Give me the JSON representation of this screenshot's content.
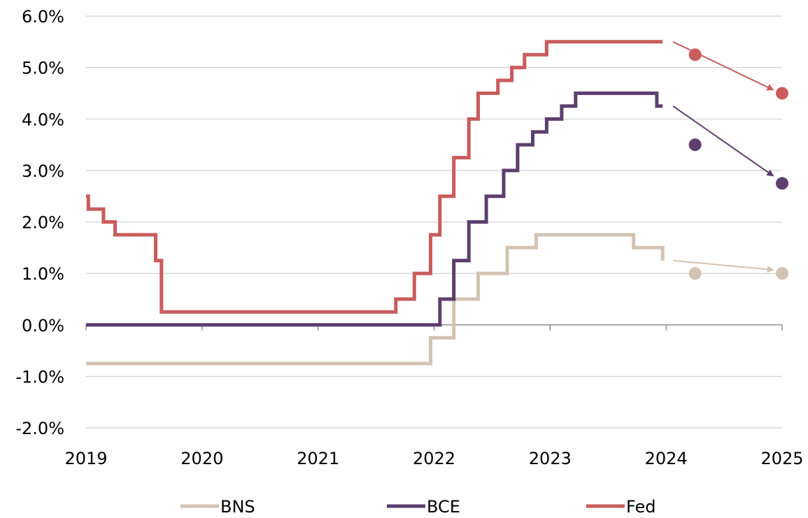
{
  "chart_data": {
    "type": "line",
    "step": true,
    "title": "",
    "xlabel": "",
    "ylabel": "",
    "xlim": [
      2019,
      2025
    ],
    "ylim": [
      -2.0,
      6.0
    ],
    "x_ticks": [
      "2019",
      "2020",
      "2021",
      "2022",
      "2023",
      "2024",
      "2025"
    ],
    "y_ticks": [
      "6.0%",
      "5.0%",
      "4.0%",
      "3.0%",
      "2.0%",
      "1.0%",
      "0.0%",
      "-1.0%",
      "-2.0%"
    ],
    "grid": "horizontal",
    "legend_position": "bottom",
    "series": [
      {
        "name": "BNS",
        "color": "#d3c3b2",
        "points": [
          [
            2019.0,
            -0.75
          ],
          [
            2021.97,
            -0.75
          ],
          [
            2021.97,
            -0.25
          ],
          [
            2022.17,
            -0.25
          ],
          [
            2022.17,
            0.5
          ],
          [
            2022.38,
            0.5
          ],
          [
            2022.38,
            1.0
          ],
          [
            2022.63,
            1.0
          ],
          [
            2022.63,
            1.5
          ],
          [
            2022.88,
            1.5
          ],
          [
            2022.88,
            1.75
          ],
          [
            2023.72,
            1.75
          ],
          [
            2023.72,
            1.5
          ],
          [
            2023.97,
            1.5
          ],
          [
            2023.97,
            1.25
          ]
        ],
        "forecast": [
          {
            "x": 2024.25,
            "y": 1.0
          },
          {
            "x": 2025.0,
            "y": 1.0
          }
        ],
        "arrow": {
          "from": [
            2024.06,
            1.25
          ],
          "to": [
            2024.92,
            1.07
          ]
        }
      },
      {
        "name": "BCE",
        "color": "#5c3f6e",
        "points": [
          [
            2019.0,
            0.0
          ],
          [
            2022.05,
            0.0
          ],
          [
            2022.05,
            0.5
          ],
          [
            2022.17,
            0.5
          ],
          [
            2022.17,
            1.25
          ],
          [
            2022.3,
            1.25
          ],
          [
            2022.3,
            2.0
          ],
          [
            2022.45,
            2.0
          ],
          [
            2022.45,
            2.5
          ],
          [
            2022.6,
            2.5
          ],
          [
            2022.6,
            3.0
          ],
          [
            2022.72,
            3.0
          ],
          [
            2022.72,
            3.5
          ],
          [
            2022.85,
            3.5
          ],
          [
            2022.85,
            3.75
          ],
          [
            2022.97,
            3.75
          ],
          [
            2022.97,
            4.0
          ],
          [
            2023.1,
            4.0
          ],
          [
            2023.1,
            4.25
          ],
          [
            2023.22,
            4.25
          ],
          [
            2023.22,
            4.5
          ],
          [
            2023.92,
            4.5
          ],
          [
            2023.92,
            4.25
          ],
          [
            2023.97,
            4.25
          ]
        ],
        "forecast": [
          {
            "x": 2024.25,
            "y": 3.5
          },
          {
            "x": 2025.0,
            "y": 2.75
          }
        ],
        "arrow": {
          "from": [
            2024.06,
            4.25
          ],
          "to": [
            2024.92,
            2.9
          ]
        }
      },
      {
        "name": "Fed",
        "color": "#c95c5c",
        "points": [
          [
            2019.0,
            2.5
          ],
          [
            2019.02,
            2.5
          ],
          [
            2019.02,
            2.25
          ],
          [
            2019.15,
            2.25
          ],
          [
            2019.15,
            2.0
          ],
          [
            2019.25,
            2.0
          ],
          [
            2019.25,
            1.75
          ],
          [
            2019.6,
            1.75
          ],
          [
            2019.6,
            1.25
          ],
          [
            2019.65,
            1.25
          ],
          [
            2019.65,
            0.25
          ],
          [
            2021.67,
            0.25
          ],
          [
            2021.67,
            0.5
          ],
          [
            2021.83,
            0.5
          ],
          [
            2021.83,
            1.0
          ],
          [
            2021.97,
            1.0
          ],
          [
            2021.97,
            1.75
          ],
          [
            2022.05,
            1.75
          ],
          [
            2022.05,
            2.5
          ],
          [
            2022.17,
            2.5
          ],
          [
            2022.17,
            3.25
          ],
          [
            2022.3,
            3.25
          ],
          [
            2022.3,
            4.0
          ],
          [
            2022.38,
            4.0
          ],
          [
            2022.38,
            4.5
          ],
          [
            2022.55,
            4.5
          ],
          [
            2022.55,
            4.75
          ],
          [
            2022.67,
            4.75
          ],
          [
            2022.67,
            5.0
          ],
          [
            2022.78,
            5.0
          ],
          [
            2022.78,
            5.25
          ],
          [
            2022.97,
            5.25
          ],
          [
            2022.97,
            5.5
          ],
          [
            2023.97,
            5.5
          ]
        ],
        "forecast": [
          {
            "x": 2024.25,
            "y": 5.25
          },
          {
            "x": 2025.0,
            "y": 4.5
          }
        ],
        "arrow": {
          "from": [
            2024.06,
            5.5
          ],
          "to": [
            2024.92,
            4.57
          ]
        }
      }
    ]
  }
}
